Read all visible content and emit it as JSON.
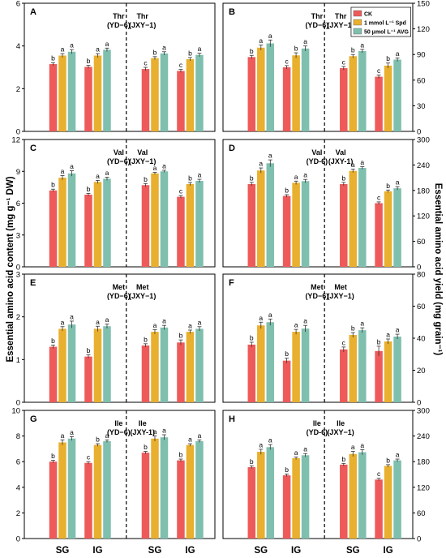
{
  "figure": {
    "y_label_left": "Essential amino acid content (mg g⁻¹ DW)",
    "y_label_right": "Essential amino acid yield (mg grain⁻¹)"
  },
  "colors": {
    "CK": "#EE5A5A",
    "Spd": "#E8B02E",
    "AVG": "#7FBFAE"
  },
  "legend": {
    "placement": "top-right of panel B",
    "entries": [
      "CK",
      "1 mmol L⁻¹ Spd",
      "50 μmol L⁻¹ AVG"
    ]
  },
  "chart_data": [
    {
      "type": "bar",
      "panel": "A",
      "amino_acid": "Thr",
      "measure": "content",
      "ylim": [
        0,
        6
      ],
      "yticks": [
        0,
        2,
        4,
        6
      ],
      "cultivars": [
        "(YD−6)",
        "(JXY−1)"
      ],
      "categories": [
        "SG",
        "IG",
        "SG",
        "IG"
      ],
      "series": [
        {
          "name": "CK",
          "values": [
            3.15,
            3.02,
            2.92,
            2.83
          ],
          "errors": [
            0.07,
            0.07,
            0.08,
            0.07
          ],
          "letters": [
            "b",
            "b",
            "c",
            "c"
          ]
        },
        {
          "name": "1 mmol L⁻¹ Spd",
          "values": [
            3.55,
            3.55,
            3.43,
            3.38
          ],
          "errors": [
            0.09,
            0.09,
            0.07,
            0.08
          ],
          "letters": [
            "a",
            "a",
            "b",
            "b"
          ]
        },
        {
          "name": "50 μmol L⁻¹ AVG",
          "values": [
            3.73,
            3.82,
            3.65,
            3.58
          ],
          "errors": [
            0.1,
            0.08,
            0.08,
            0.08
          ],
          "letters": [
            "a",
            "a",
            "a",
            "a"
          ]
        }
      ]
    },
    {
      "type": "bar",
      "panel": "B",
      "amino_acid": "Thr",
      "measure": "yield",
      "ylim": [
        0,
        150
      ],
      "yticks": [
        0,
        30,
        60,
        90,
        120,
        150
      ],
      "cultivars": [
        "(YD−6)",
        "(JXY−1)"
      ],
      "categories": [
        "SG",
        "IG",
        "SG",
        "IG"
      ],
      "series": [
        {
          "name": "CK",
          "values": [
            87,
            75,
            74,
            64
          ],
          "errors": [
            2,
            2,
            2,
            2
          ],
          "letters": [
            "b",
            "c",
            "c",
            "c"
          ]
        },
        {
          "name": "1 mmol L⁻¹ Spd",
          "values": [
            98,
            89,
            88,
            77
          ],
          "errors": [
            3,
            3,
            2,
            3
          ],
          "letters": [
            "a",
            "b",
            "b",
            "b"
          ]
        },
        {
          "name": "50 μmol L⁻¹ AVG",
          "values": [
            103,
            97,
            94,
            84
          ],
          "errors": [
            4,
            3,
            2,
            2
          ],
          "letters": [
            "a",
            "a",
            "a",
            "a"
          ]
        }
      ]
    },
    {
      "type": "bar",
      "panel": "C",
      "amino_acid": "Val",
      "measure": "content",
      "ylim": [
        0,
        12
      ],
      "yticks": [
        0,
        3,
        6,
        9,
        12
      ],
      "cultivars": [
        "(YD−6)",
        "(JXY−1)"
      ],
      "categories": [
        "SG",
        "IG",
        "SG",
        "IG"
      ],
      "series": [
        {
          "name": "CK",
          "values": [
            7.2,
            6.8,
            7.7,
            6.6
          ],
          "errors": [
            0.12,
            0.12,
            0.15,
            0.12
          ],
          "letters": [
            "b",
            "b",
            "b",
            "c"
          ]
        },
        {
          "name": "1 mmol L⁻¹ Spd",
          "values": [
            8.4,
            8.0,
            8.8,
            7.8
          ],
          "errors": [
            0.2,
            0.15,
            0.1,
            0.15
          ],
          "letters": [
            "a",
            "a",
            "a",
            "b"
          ]
        },
        {
          "name": "50 μmol L⁻¹ AVG",
          "values": [
            8.8,
            8.3,
            9.0,
            8.1
          ],
          "errors": [
            0.25,
            0.15,
            0.1,
            0.15
          ],
          "letters": [
            "a",
            "a",
            "a",
            "a"
          ]
        }
      ]
    },
    {
      "type": "bar",
      "panel": "D",
      "amino_acid": "Val",
      "measure": "yield",
      "ylim": [
        0,
        300
      ],
      "yticks": [
        0,
        60,
        120,
        180,
        240,
        300
      ],
      "cultivars": [
        "(YD-6)",
        "(JXY-1)"
      ],
      "categories": [
        "SG",
        "IG",
        "SG",
        "IG"
      ],
      "series": [
        {
          "name": "CK",
          "values": [
            195,
            167,
            195,
            150
          ],
          "errors": [
            4,
            3,
            4,
            3
          ],
          "letters": [
            "b",
            "b",
            "b",
            "c"
          ]
        },
        {
          "name": "1 mmol L⁻¹ Spd",
          "values": [
            227,
            198,
            226,
            178
          ],
          "errors": [
            6,
            4,
            4,
            3
          ],
          "letters": [
            "a",
            "a",
            "a",
            "b"
          ]
        },
        {
          "name": "50 μmol L⁻¹ AVG",
          "values": [
            244,
            202,
            233,
            185
          ],
          "errors": [
            8,
            4,
            3,
            4
          ],
          "letters": [
            "a",
            "a",
            "a",
            "a"
          ]
        }
      ]
    },
    {
      "type": "bar",
      "panel": "E",
      "amino_acid": "Met",
      "measure": "content",
      "ylim": [
        0,
        3
      ],
      "yticks": [
        0,
        1,
        2,
        3
      ],
      "cultivars": [
        "(YD−6)",
        "(JXY−1)"
      ],
      "categories": [
        "SG",
        "IG",
        "SG",
        "IG"
      ],
      "series": [
        {
          "name": "CK",
          "values": [
            1.3,
            1.07,
            1.33,
            1.4
          ],
          "errors": [
            0.04,
            0.04,
            0.04,
            0.06
          ],
          "letters": [
            "b",
            "b",
            "b",
            "b"
          ]
        },
        {
          "name": "1 mmol L⁻¹ Spd",
          "values": [
            1.72,
            1.72,
            1.65,
            1.65
          ],
          "errors": [
            0.05,
            0.06,
            0.05,
            0.04
          ],
          "letters": [
            "a",
            "a",
            "a",
            "a"
          ]
        },
        {
          "name": "50 μmol L⁻¹ AVG",
          "values": [
            1.82,
            1.78,
            1.75,
            1.72
          ],
          "errors": [
            0.08,
            0.05,
            0.05,
            0.05
          ],
          "letters": [
            "a",
            "a",
            "a",
            "a"
          ]
        }
      ]
    },
    {
      "type": "bar",
      "panel": "F",
      "amino_acid": "Met",
      "measure": "yield",
      "ylim": [
        0,
        80
      ],
      "yticks": [
        0,
        20,
        40,
        60,
        80
      ],
      "cultivars": [
        "(YD−6)",
        "(JXY−1)"
      ],
      "categories": [
        "SG",
        "IG",
        "SG",
        "IG"
      ],
      "series": [
        {
          "name": "CK",
          "values": [
            36,
            26,
            33,
            32
          ],
          "errors": [
            1.5,
            1.5,
            1.5,
            3
          ],
          "letters": [
            "b",
            "b",
            "c",
            "b"
          ]
        },
        {
          "name": "1 mmol L⁻¹ Spd",
          "values": [
            48,
            44,
            42,
            38
          ],
          "errors": [
            2,
            1.5,
            1.5,
            1.5
          ],
          "letters": [
            "a",
            "a",
            "b",
            "a"
          ]
        },
        {
          "name": "50 μmol L⁻¹ AVG",
          "values": [
            50,
            46,
            45,
            41
          ],
          "errors": [
            2,
            2,
            1.5,
            1.5
          ],
          "letters": [
            "a",
            "a",
            "a",
            "a"
          ]
        }
      ]
    },
    {
      "type": "bar",
      "panel": "G",
      "amino_acid": "Ile",
      "measure": "content",
      "ylim": [
        0,
        10
      ],
      "yticks": [
        0,
        2,
        4,
        6,
        8,
        10
      ],
      "cultivars": [
        "(YD−6)",
        "(JXY-1)"
      ],
      "categories": [
        "SG",
        "IG",
        "SG",
        "IG"
      ],
      "series": [
        {
          "name": "CK",
          "values": [
            6.0,
            5.9,
            6.7,
            6.1
          ],
          "errors": [
            0.1,
            0.1,
            0.1,
            0.1
          ],
          "letters": [
            "b",
            "c",
            "b",
            "b"
          ]
        },
        {
          "name": "1 mmol L⁻¹ Spd",
          "values": [
            7.5,
            7.3,
            7.8,
            7.3
          ],
          "errors": [
            0.2,
            0.1,
            0.2,
            0.1
          ],
          "letters": [
            "a",
            "b",
            "a",
            "a"
          ]
        },
        {
          "name": "50 μmol L⁻¹ AVG",
          "values": [
            7.8,
            7.6,
            7.9,
            7.6
          ],
          "errors": [
            0.15,
            0.1,
            0.2,
            0.1
          ],
          "letters": [
            "a",
            "a",
            "a",
            "a"
          ]
        }
      ]
    },
    {
      "type": "bar",
      "panel": "H",
      "amino_acid": "Ile",
      "measure": "yield",
      "ylim": [
        0,
        300
      ],
      "yticks": [
        0,
        60,
        120,
        180,
        240,
        300
      ],
      "cultivars": [
        "(YD-6)",
        "(JXY−1)"
      ],
      "categories": [
        "SG",
        "IG",
        "SG",
        "IG"
      ],
      "series": [
        {
          "name": "CK",
          "values": [
            167,
            148,
            173,
            138
          ],
          "errors": [
            3,
            3,
            3,
            3
          ],
          "letters": [
            "b",
            "b",
            "b",
            "c"
          ]
        },
        {
          "name": "1 mmol L⁻¹ Spd",
          "values": [
            203,
            188,
            198,
            170
          ],
          "errors": [
            6,
            3,
            6,
            3
          ],
          "letters": [
            "a",
            "a",
            "a",
            "b"
          ]
        },
        {
          "name": "50 μmol L⁻¹ AVG",
          "values": [
            214,
            195,
            202,
            183
          ],
          "errors": [
            6,
            4,
            6,
            3
          ],
          "letters": [
            "a",
            "a",
            "a",
            "a"
          ]
        }
      ]
    }
  ]
}
